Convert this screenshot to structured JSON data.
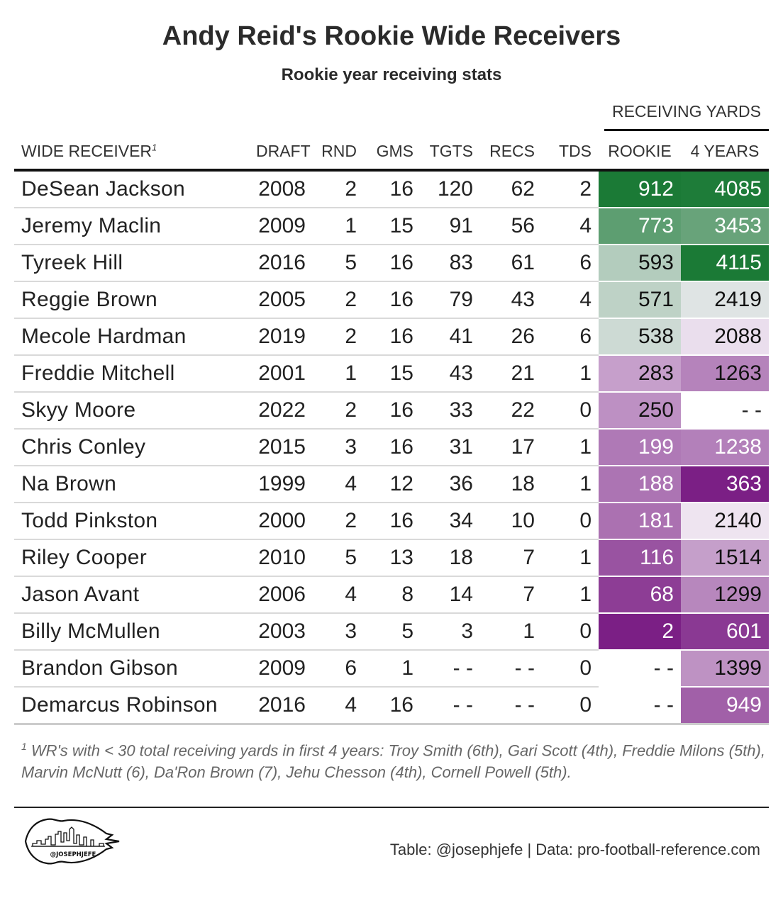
{
  "chart_data": {
    "type": "table",
    "title": "Andy Reid's Rookie Wide Receivers",
    "subtitle": "Rookie year receiving stats",
    "spanner": "RECEIVING YARDS",
    "columns": [
      "WIDE RECEIVER",
      "DRAFT",
      "RND",
      "GMS",
      "TGTS",
      "RECS",
      "TDS",
      "ROOKIE",
      "4 YEARS"
    ],
    "header_footnote_mark": "1",
    "rows": [
      {
        "name": "DeSean Jackson",
        "draft": "2008",
        "rnd": "2",
        "gms": "16",
        "tgts": "120",
        "recs": "62",
        "tds": "2",
        "rookie": "912",
        "four": "4085"
      },
      {
        "name": "Jeremy Maclin",
        "draft": "2009",
        "rnd": "1",
        "gms": "15",
        "tgts": "91",
        "recs": "56",
        "tds": "4",
        "rookie": "773",
        "four": "3453"
      },
      {
        "name": "Tyreek Hill",
        "draft": "2016",
        "rnd": "5",
        "gms": "16",
        "tgts": "83",
        "recs": "61",
        "tds": "6",
        "rookie": "593",
        "four": "4115"
      },
      {
        "name": "Reggie Brown",
        "draft": "2005",
        "rnd": "2",
        "gms": "16",
        "tgts": "79",
        "recs": "43",
        "tds": "4",
        "rookie": "571",
        "four": "2419"
      },
      {
        "name": "Mecole Hardman",
        "draft": "2019",
        "rnd": "2",
        "gms": "16",
        "tgts": "41",
        "recs": "26",
        "tds": "6",
        "rookie": "538",
        "four": "2088"
      },
      {
        "name": "Freddie Mitchell",
        "draft": "2001",
        "rnd": "1",
        "gms": "15",
        "tgts": "43",
        "recs": "21",
        "tds": "1",
        "rookie": "283",
        "four": "1263"
      },
      {
        "name": "Skyy Moore",
        "draft": "2022",
        "rnd": "2",
        "gms": "16",
        "tgts": "33",
        "recs": "22",
        "tds": "0",
        "rookie": "250",
        "four": "- -"
      },
      {
        "name": "Chris Conley",
        "draft": "2015",
        "rnd": "3",
        "gms": "16",
        "tgts": "31",
        "recs": "17",
        "tds": "1",
        "rookie": "199",
        "four": "1238"
      },
      {
        "name": "Na Brown",
        "draft": "1999",
        "rnd": "4",
        "gms": "12",
        "tgts": "36",
        "recs": "18",
        "tds": "1",
        "rookie": "188",
        "four": "363"
      },
      {
        "name": "Todd Pinkston",
        "draft": "2000",
        "rnd": "2",
        "gms": "16",
        "tgts": "34",
        "recs": "10",
        "tds": "0",
        "rookie": "181",
        "four": "2140"
      },
      {
        "name": "Riley Cooper",
        "draft": "2010",
        "rnd": "5",
        "gms": "13",
        "tgts": "18",
        "recs": "7",
        "tds": "1",
        "rookie": "116",
        "four": "1514"
      },
      {
        "name": "Jason Avant",
        "draft": "2006",
        "rnd": "4",
        "gms": "8",
        "tgts": "14",
        "recs": "7",
        "tds": "1",
        "rookie": "68",
        "four": "1299"
      },
      {
        "name": "Billy McMullen",
        "draft": "2003",
        "rnd": "3",
        "gms": "5",
        "tgts": "3",
        "recs": "1",
        "tds": "0",
        "rookie": "2",
        "four": "601"
      },
      {
        "name": "Brandon Gibson",
        "draft": "2009",
        "rnd": "6",
        "gms": "1",
        "tgts": "- -",
        "recs": "- -",
        "tds": "0",
        "rookie": "- -",
        "four": "1399"
      },
      {
        "name": "Demarcus Robinson",
        "draft": "2016",
        "rnd": "4",
        "gms": "16",
        "tgts": "- -",
        "recs": "- -",
        "tds": "0",
        "rookie": "- -",
        "four": "949"
      }
    ],
    "color_scale": {
      "low": "#7b1f85",
      "mid": "#f4eff6",
      "high": "#1b7a36"
    },
    "footnote_mark": "1",
    "footnote": "WR's with < 30 total receiving yards in first 4 years: Troy Smith (6th), Gari Scott (4th), Freddie Milons (5th), Marvin McNutt (6), Da'Ron Brown (7), Jehu Chesson (4th), Cornell Powell (5th).",
    "source": "Table: @josephjefe | Data: pro-football-reference.com"
  },
  "logo": {
    "icon": "arrowhead-skyline-logo",
    "text": "@JOSEPHJEFE"
  }
}
